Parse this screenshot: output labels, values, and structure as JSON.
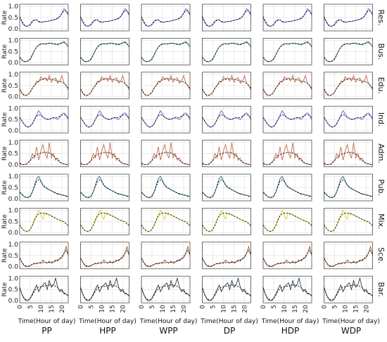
{
  "chart_data": {
    "type": "line",
    "description_axes": {
      "xlabel": "Time(Hour of day)",
      "ylabel": "Rate",
      "xlim": [
        0,
        23
      ],
      "ylim": [
        -0.1,
        1.1
      ],
      "xticks": [
        "0",
        "5",
        "10",
        "15",
        "20"
      ],
      "yticks": [
        "0.0",
        "0.5",
        "1.0"
      ],
      "grid": true
    },
    "columns": [
      "PP",
      "HPP",
      "WPP",
      "DP",
      "HDP",
      "WDP"
    ],
    "rows": [
      {
        "label": "Res.",
        "color": "#5b63d6",
        "actual": [
          0.5,
          0.3,
          0.15,
          0.1,
          0.12,
          0.2,
          0.35,
          0.4,
          0.4,
          0.3,
          0.28,
          0.3,
          0.33,
          0.32,
          0.35,
          0.38,
          0.4,
          0.42,
          0.45,
          0.55,
          0.7,
          0.9,
          0.8,
          0.6
        ],
        "fit": [
          0.55,
          0.35,
          0.18,
          0.12,
          0.12,
          0.18,
          0.3,
          0.38,
          0.4,
          0.33,
          0.3,
          0.3,
          0.32,
          0.33,
          0.35,
          0.37,
          0.4,
          0.43,
          0.48,
          0.55,
          0.68,
          0.82,
          0.8,
          0.65
        ]
      },
      {
        "label": "Bus.",
        "color": "#2f7d55",
        "actual": [
          0.25,
          0.12,
          0.05,
          0.05,
          0.08,
          0.15,
          0.35,
          0.55,
          0.7,
          0.8,
          0.85,
          0.85,
          0.83,
          0.85,
          0.88,
          0.87,
          0.85,
          0.82,
          0.8,
          0.85,
          0.9,
          0.95,
          0.85,
          0.7
        ],
        "fit": [
          0.25,
          0.12,
          0.06,
          0.05,
          0.08,
          0.18,
          0.35,
          0.55,
          0.7,
          0.78,
          0.83,
          0.85,
          0.85,
          0.86,
          0.87,
          0.86,
          0.85,
          0.84,
          0.83,
          0.85,
          0.88,
          0.9,
          0.85,
          0.72
        ]
      },
      {
        "label": "Edu.",
        "color": "#c56b4a",
        "actual": [
          0.35,
          0.15,
          0.05,
          0.05,
          0.1,
          0.2,
          0.4,
          0.5,
          0.7,
          0.65,
          0.9,
          0.75,
          0.85,
          0.7,
          0.95,
          0.65,
          0.8,
          0.85,
          0.6,
          0.7,
          0.95,
          0.6,
          0.5,
          0.3
        ],
        "fit": [
          0.35,
          0.18,
          0.08,
          0.06,
          0.1,
          0.2,
          0.38,
          0.5,
          0.62,
          0.7,
          0.76,
          0.8,
          0.8,
          0.8,
          0.8,
          0.78,
          0.76,
          0.74,
          0.7,
          0.68,
          0.66,
          0.6,
          0.5,
          0.38
        ]
      },
      {
        "label": "Ind.",
        "color": "#5b63d6",
        "actual": [
          0.6,
          0.45,
          0.3,
          0.2,
          0.15,
          0.2,
          0.3,
          0.5,
          0.7,
          0.9,
          0.75,
          0.6,
          0.55,
          0.5,
          0.5,
          0.55,
          0.6,
          0.55,
          0.5,
          0.6,
          0.75,
          0.8,
          0.7,
          0.5
        ],
        "fit": [
          0.6,
          0.45,
          0.3,
          0.2,
          0.16,
          0.2,
          0.32,
          0.5,
          0.65,
          0.72,
          0.68,
          0.6,
          0.55,
          0.52,
          0.52,
          0.55,
          0.57,
          0.58,
          0.6,
          0.65,
          0.7,
          0.72,
          0.68,
          0.55
        ]
      },
      {
        "label": "Adm.",
        "color": "#c56b4a",
        "actual": [
          0.1,
          0.0,
          0.0,
          0.0,
          0.1,
          0.2,
          0.5,
          0.3,
          0.8,
          0.2,
          0.6,
          0.9,
          0.5,
          0.3,
          1.0,
          0.3,
          0.5,
          0.2,
          0.3,
          0.1,
          0.05,
          0.05,
          0.0,
          0.0
        ],
        "fit": [
          0.05,
          0.0,
          0.0,
          0.02,
          0.08,
          0.18,
          0.3,
          0.4,
          0.45,
          0.5,
          0.52,
          0.55,
          0.55,
          0.55,
          0.52,
          0.48,
          0.4,
          0.3,
          0.2,
          0.12,
          0.06,
          0.03,
          0.01,
          0.0
        ]
      },
      {
        "label": "Pub.",
        "color": "#1f6b86",
        "actual": [
          0.3,
          0.2,
          0.1,
          0.05,
          0.05,
          0.1,
          0.3,
          0.6,
          0.9,
          1.0,
          0.8,
          0.6,
          0.5,
          0.45,
          0.4,
          0.35,
          0.3,
          0.25,
          0.2,
          0.2,
          0.15,
          0.15,
          0.1,
          0.1
        ],
        "fit": [
          0.28,
          0.18,
          0.1,
          0.06,
          0.06,
          0.12,
          0.3,
          0.55,
          0.78,
          0.85,
          0.78,
          0.62,
          0.52,
          0.46,
          0.4,
          0.35,
          0.3,
          0.26,
          0.22,
          0.2,
          0.17,
          0.15,
          0.12,
          0.1
        ]
      },
      {
        "label": "Mix.",
        "color": "#d8d21e",
        "actual": [
          0.35,
          0.2,
          0.1,
          0.05,
          0.05,
          0.15,
          0.35,
          0.6,
          0.8,
          1.0,
          0.8,
          0.6,
          0.9,
          0.85,
          0.8,
          0.75,
          0.7,
          0.65,
          0.6,
          0.55,
          0.5,
          0.5,
          0.4,
          0.3
        ],
        "fit": [
          0.35,
          0.2,
          0.1,
          0.06,
          0.06,
          0.15,
          0.32,
          0.55,
          0.75,
          0.85,
          0.88,
          0.88,
          0.86,
          0.83,
          0.8,
          0.75,
          0.7,
          0.65,
          0.6,
          0.56,
          0.52,
          0.48,
          0.4,
          0.32
        ]
      },
      {
        "label": "Sce.",
        "color": "#a0522d",
        "actual": [
          0.4,
          0.2,
          0.05,
          0.0,
          0.0,
          0.05,
          0.1,
          0.15,
          0.12,
          0.18,
          0.15,
          0.3,
          0.2,
          0.15,
          0.25,
          0.15,
          0.2,
          0.3,
          0.25,
          0.35,
          0.4,
          0.6,
          0.9,
          0.5
        ],
        "fit": [
          0.38,
          0.2,
          0.08,
          0.03,
          0.02,
          0.05,
          0.1,
          0.13,
          0.15,
          0.16,
          0.17,
          0.18,
          0.18,
          0.18,
          0.19,
          0.2,
          0.22,
          0.25,
          0.3,
          0.36,
          0.45,
          0.6,
          0.72,
          0.55
        ]
      },
      {
        "label": "Bar.",
        "color": "#2a3a4a",
        "actual": [
          0.6,
          0.3,
          0.1,
          0.0,
          0.0,
          0.1,
          0.3,
          0.5,
          0.7,
          0.4,
          0.6,
          0.7,
          0.8,
          0.5,
          0.9,
          0.6,
          0.7,
          1.0,
          0.6,
          0.4,
          0.5,
          0.3,
          0.3,
          0.2
        ],
        "fit": [
          0.55,
          0.3,
          0.12,
          0.04,
          0.03,
          0.1,
          0.25,
          0.42,
          0.55,
          0.6,
          0.62,
          0.64,
          0.66,
          0.68,
          0.7,
          0.7,
          0.68,
          0.64,
          0.58,
          0.5,
          0.42,
          0.35,
          0.28,
          0.22
        ]
      }
    ]
  },
  "labels": {
    "ylabel": "Rate",
    "xlabel": "Time(Hour of day)"
  },
  "colors": {
    "background": "#ffffff",
    "grid": "#dddddd",
    "axis": "#333333",
    "fit_line": "#111111"
  }
}
